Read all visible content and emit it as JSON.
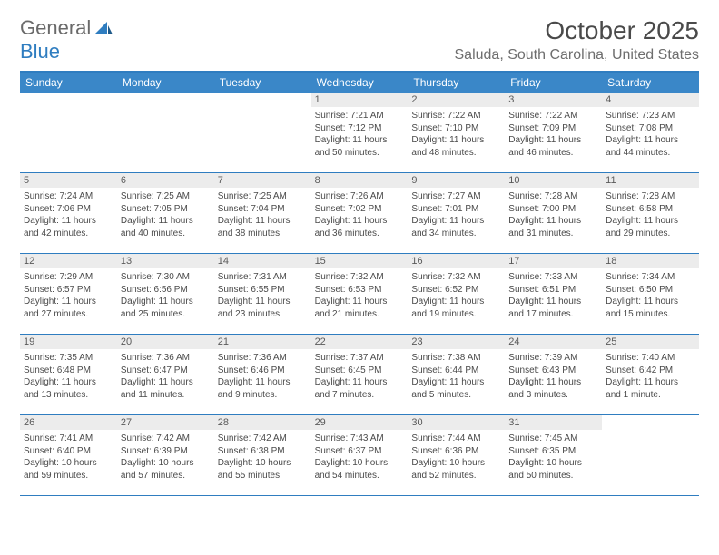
{
  "logo": {
    "general": "General",
    "blue": "Blue"
  },
  "title": "October 2025",
  "location": "Saluda, South Carolina, United States",
  "colors": {
    "header_bg": "#3a87c8",
    "header_text": "#ffffff",
    "border": "#2f7dc0",
    "daynum_bg": "#ececec",
    "text": "#4a4a4a",
    "logo_gray": "#6a6a6a",
    "logo_blue": "#2f7dc0"
  },
  "dow": [
    "Sunday",
    "Monday",
    "Tuesday",
    "Wednesday",
    "Thursday",
    "Friday",
    "Saturday"
  ],
  "weeks": [
    [
      {
        "empty": true
      },
      {
        "empty": true
      },
      {
        "empty": true
      },
      {
        "n": "1",
        "sr": "7:21 AM",
        "ss": "7:12 PM",
        "dl": "11 hours and 50 minutes."
      },
      {
        "n": "2",
        "sr": "7:22 AM",
        "ss": "7:10 PM",
        "dl": "11 hours and 48 minutes."
      },
      {
        "n": "3",
        "sr": "7:22 AM",
        "ss": "7:09 PM",
        "dl": "11 hours and 46 minutes."
      },
      {
        "n": "4",
        "sr": "7:23 AM",
        "ss": "7:08 PM",
        "dl": "11 hours and 44 minutes."
      }
    ],
    [
      {
        "n": "5",
        "sr": "7:24 AM",
        "ss": "7:06 PM",
        "dl": "11 hours and 42 minutes."
      },
      {
        "n": "6",
        "sr": "7:25 AM",
        "ss": "7:05 PM",
        "dl": "11 hours and 40 minutes."
      },
      {
        "n": "7",
        "sr": "7:25 AM",
        "ss": "7:04 PM",
        "dl": "11 hours and 38 minutes."
      },
      {
        "n": "8",
        "sr": "7:26 AM",
        "ss": "7:02 PM",
        "dl": "11 hours and 36 minutes."
      },
      {
        "n": "9",
        "sr": "7:27 AM",
        "ss": "7:01 PM",
        "dl": "11 hours and 34 minutes."
      },
      {
        "n": "10",
        "sr": "7:28 AM",
        "ss": "7:00 PM",
        "dl": "11 hours and 31 minutes."
      },
      {
        "n": "11",
        "sr": "7:28 AM",
        "ss": "6:58 PM",
        "dl": "11 hours and 29 minutes."
      }
    ],
    [
      {
        "n": "12",
        "sr": "7:29 AM",
        "ss": "6:57 PM",
        "dl": "11 hours and 27 minutes."
      },
      {
        "n": "13",
        "sr": "7:30 AM",
        "ss": "6:56 PM",
        "dl": "11 hours and 25 minutes."
      },
      {
        "n": "14",
        "sr": "7:31 AM",
        "ss": "6:55 PM",
        "dl": "11 hours and 23 minutes."
      },
      {
        "n": "15",
        "sr": "7:32 AM",
        "ss": "6:53 PM",
        "dl": "11 hours and 21 minutes."
      },
      {
        "n": "16",
        "sr": "7:32 AM",
        "ss": "6:52 PM",
        "dl": "11 hours and 19 minutes."
      },
      {
        "n": "17",
        "sr": "7:33 AM",
        "ss": "6:51 PM",
        "dl": "11 hours and 17 minutes."
      },
      {
        "n": "18",
        "sr": "7:34 AM",
        "ss": "6:50 PM",
        "dl": "11 hours and 15 minutes."
      }
    ],
    [
      {
        "n": "19",
        "sr": "7:35 AM",
        "ss": "6:48 PM",
        "dl": "11 hours and 13 minutes."
      },
      {
        "n": "20",
        "sr": "7:36 AM",
        "ss": "6:47 PM",
        "dl": "11 hours and 11 minutes."
      },
      {
        "n": "21",
        "sr": "7:36 AM",
        "ss": "6:46 PM",
        "dl": "11 hours and 9 minutes."
      },
      {
        "n": "22",
        "sr": "7:37 AM",
        "ss": "6:45 PM",
        "dl": "11 hours and 7 minutes."
      },
      {
        "n": "23",
        "sr": "7:38 AM",
        "ss": "6:44 PM",
        "dl": "11 hours and 5 minutes."
      },
      {
        "n": "24",
        "sr": "7:39 AM",
        "ss": "6:43 PM",
        "dl": "11 hours and 3 minutes."
      },
      {
        "n": "25",
        "sr": "7:40 AM",
        "ss": "6:42 PM",
        "dl": "11 hours and 1 minute."
      }
    ],
    [
      {
        "n": "26",
        "sr": "7:41 AM",
        "ss": "6:40 PM",
        "dl": "10 hours and 59 minutes."
      },
      {
        "n": "27",
        "sr": "7:42 AM",
        "ss": "6:39 PM",
        "dl": "10 hours and 57 minutes."
      },
      {
        "n": "28",
        "sr": "7:42 AM",
        "ss": "6:38 PM",
        "dl": "10 hours and 55 minutes."
      },
      {
        "n": "29",
        "sr": "7:43 AM",
        "ss": "6:37 PM",
        "dl": "10 hours and 54 minutes."
      },
      {
        "n": "30",
        "sr": "7:44 AM",
        "ss": "6:36 PM",
        "dl": "10 hours and 52 minutes."
      },
      {
        "n": "31",
        "sr": "7:45 AM",
        "ss": "6:35 PM",
        "dl": "10 hours and 50 minutes."
      },
      {
        "empty": true
      }
    ]
  ],
  "labels": {
    "sunrise": "Sunrise:",
    "sunset": "Sunset:",
    "daylight": "Daylight:"
  }
}
